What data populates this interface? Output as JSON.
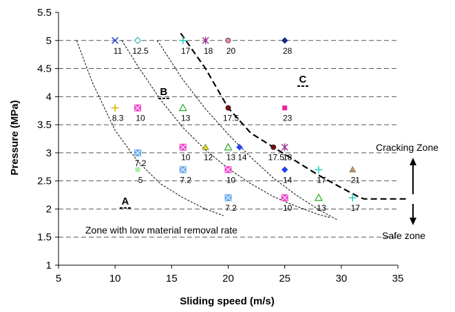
{
  "chart_data": {
    "type": "scatter",
    "xlabel": "Sliding speed (m/s)",
    "ylabel": "Pressure (MPa)",
    "xlim": [
      5,
      35
    ],
    "ylim": [
      1,
      5.5
    ],
    "x_ticks": [
      "5",
      "10",
      "15",
      "20",
      "25",
      "30",
      "35"
    ],
    "y_ticks": [
      "1",
      "1.5",
      "2",
      "2.5",
      "3",
      "3.5",
      "4",
      "4.5",
      "5",
      "5.5"
    ],
    "grid": "horizontal dashed",
    "points": [
      {
        "x": 10,
        "y": 5.0,
        "label": "11",
        "marker": "x",
        "color": "#2233cc"
      },
      {
        "x": 12,
        "y": 5.0,
        "label": "12.5",
        "marker": "diamond-open",
        "color": "#33b8b8"
      },
      {
        "x": 16,
        "y": 5.0,
        "label": "17",
        "marker": "plus",
        "color": "#22d0c0"
      },
      {
        "x": 18,
        "y": 5.0,
        "label": "18",
        "marker": "star",
        "color": "#993399"
      },
      {
        "x": 20,
        "y": 5.0,
        "label": "20",
        "marker": "circle",
        "color": "#ee88aa"
      },
      {
        "x": 25,
        "y": 5.0,
        "label": "28",
        "marker": "diamond",
        "color": "#1a2a80"
      },
      {
        "x": 10,
        "y": 3.8,
        "label": "8.3",
        "marker": "plus",
        "color": "#d4b800"
      },
      {
        "x": 12,
        "y": 3.8,
        "label": "10",
        "marker": "xsquare",
        "color": "#ee44cc"
      },
      {
        "x": 16,
        "y": 3.8,
        "label": "13",
        "marker": "triangle-open",
        "color": "#22aa22"
      },
      {
        "x": 20,
        "y": 3.8,
        "label": "17.5",
        "marker": "circle",
        "color": "#7a1010"
      },
      {
        "x": 25,
        "y": 3.8,
        "label": "23",
        "marker": "square",
        "color": "#ee2299"
      },
      {
        "x": 16,
        "y": 3.1,
        "label": "10",
        "marker": "xsquare",
        "color": "#ee44cc"
      },
      {
        "x": 18,
        "y": 3.1,
        "label": "12",
        "marker": "triangle",
        "color": "#dddd00"
      },
      {
        "x": 20,
        "y": 3.1,
        "label": "13",
        "marker": "triangle-open",
        "color": "#22aa22"
      },
      {
        "x": 21,
        "y": 3.1,
        "label": "14",
        "marker": "diamond",
        "color": "#2244ee"
      },
      {
        "x": 24,
        "y": 3.1,
        "label": "17.5",
        "marker": "circle",
        "color": "#7a1010"
      },
      {
        "x": 25,
        "y": 3.1,
        "label": "18",
        "marker": "star",
        "color": "#993399"
      },
      {
        "x": 12,
        "y": 3.0,
        "label": "7.2",
        "marker": "xsquare",
        "color": "#66aaee"
      },
      {
        "x": 12,
        "y": 2.7,
        "label": "5",
        "marker": "square",
        "color": "#aaeeaa"
      },
      {
        "x": 16,
        "y": 2.7,
        "label": "7.2",
        "marker": "xsquare",
        "color": "#66aaee"
      },
      {
        "x": 20,
        "y": 2.7,
        "label": "10",
        "marker": "xsquare",
        "color": "#ee44cc"
      },
      {
        "x": 25,
        "y": 2.7,
        "label": "14",
        "marker": "diamond",
        "color": "#2244ee"
      },
      {
        "x": 28,
        "y": 2.7,
        "label": "17",
        "marker": "plus",
        "color": "#22d0c0"
      },
      {
        "x": 31,
        "y": 2.7,
        "label": "21",
        "marker": "triangle",
        "color": "#cc9966"
      },
      {
        "x": 20,
        "y": 2.2,
        "label": "7.2",
        "marker": "xsquare",
        "color": "#66aaee"
      },
      {
        "x": 25,
        "y": 2.2,
        "label": "10",
        "marker": "xsquare",
        "color": "#ee44cc"
      },
      {
        "x": 28,
        "y": 2.2,
        "label": "13",
        "marker": "triangle-open",
        "color": "#22aa22"
      },
      {
        "x": 31,
        "y": 2.2,
        "label": "17",
        "marker": "plus",
        "color": "#22d0c0"
      }
    ],
    "curves": [
      {
        "style": "thin-dashed",
        "points": [
          [
            6.6,
            5.0
          ],
          [
            8,
            4.25
          ],
          [
            10,
            3.4
          ],
          [
            12,
            2.85
          ],
          [
            14,
            2.45
          ],
          [
            16,
            2.2
          ],
          [
            18,
            2.0
          ],
          [
            19.6,
            1.88
          ]
        ]
      },
      {
        "style": "thin-dashed",
        "points": [
          [
            10.6,
            5.0
          ],
          [
            12,
            4.55
          ],
          [
            14,
            3.95
          ],
          [
            16,
            3.45
          ],
          [
            18,
            3.05
          ],
          [
            20,
            2.72
          ],
          [
            22,
            2.45
          ],
          [
            24,
            2.22
          ],
          [
            26,
            2.05
          ],
          [
            28,
            1.9
          ],
          [
            29,
            1.85
          ]
        ]
      },
      {
        "style": "thin-dashed",
        "points": [
          [
            13.7,
            5.0
          ],
          [
            14,
            4.92
          ],
          [
            16,
            4.3
          ],
          [
            18,
            3.78
          ],
          [
            20,
            3.33
          ],
          [
            22,
            2.92
          ],
          [
            24,
            2.55
          ],
          [
            26,
            2.25
          ],
          [
            28,
            1.99
          ],
          [
            29.7,
            1.8
          ]
        ]
      },
      {
        "style": "thick-dashed",
        "points": [
          [
            15.8,
            5.13
          ],
          [
            18,
            4.5
          ],
          [
            20,
            3.8
          ],
          [
            22,
            3.35
          ],
          [
            24,
            3.1
          ],
          [
            26,
            2.85
          ],
          [
            28,
            2.6
          ],
          [
            30,
            2.38
          ],
          [
            31.5,
            2.22
          ],
          [
            32,
            2.18
          ],
          [
            36,
            2.18
          ]
        ]
      }
    ],
    "zone_letters": [
      {
        "text": "A",
        "x": 10.9,
        "y": 2.08
      },
      {
        "text": "B",
        "x": 14.3,
        "y": 4.03
      },
      {
        "text": "C",
        "x": 26.6,
        "y": 4.25
      }
    ],
    "annotations": {
      "low_rate": "Zone with low material removal rate",
      "cracking": "Cracking Zone",
      "safe": "Safe zone"
    }
  }
}
